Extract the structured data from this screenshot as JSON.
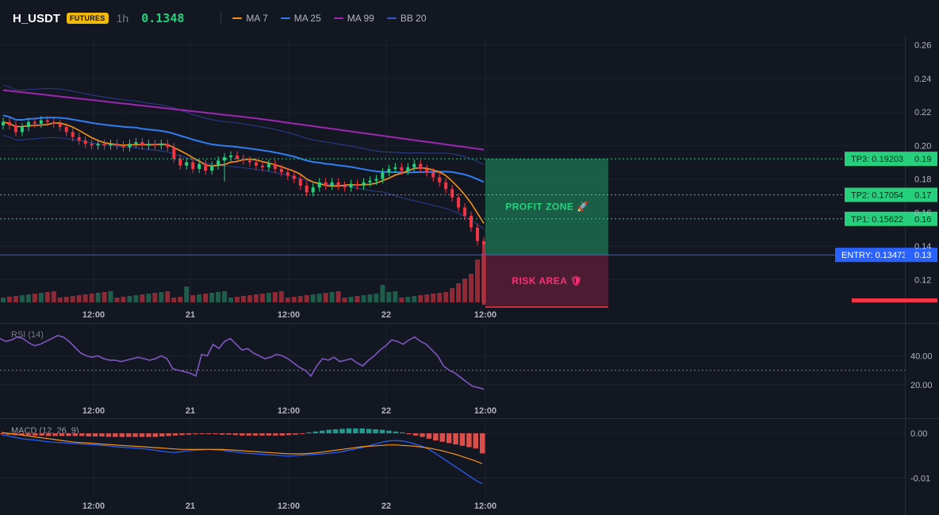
{
  "header": {
    "symbol": "H_USDT",
    "badge": "FUTURES",
    "timeframe": "1h",
    "last_price": "0.1348",
    "indicators": [
      {
        "label": "MA 7",
        "color": "#f7931a"
      },
      {
        "label": "MA 25",
        "color": "#2f7ff3"
      },
      {
        "label": "MA 99",
        "color": "#9c27b0"
      },
      {
        "label": "BB 20",
        "color": "#2a3f8f"
      }
    ]
  },
  "colors": {
    "up": "#26d07c",
    "down": "#f23645",
    "vol_up": "#1f5c4a",
    "vol_down": "#8e2a35",
    "entry": "#2962ff",
    "tp": "#26d07c",
    "profit_zone": "#1d6b4f",
    "risk_zone": "#7a2040"
  },
  "price_axis": {
    "min": 0.105,
    "max": 0.265,
    "ticks": [
      "0.26",
      "0.24",
      "0.22",
      "0.20",
      "0.18",
      "0.16",
      "0.14",
      "0.12"
    ]
  },
  "time_axis": [
    "12:00",
    "21",
    "12:00",
    "22",
    "12:00"
  ],
  "levels": {
    "tp3": {
      "label": "TP3: 0.19203",
      "value": 0.19203,
      "axis_label": "0.19"
    },
    "tp2": {
      "label": "TP2: 0.17054",
      "value": 0.17054,
      "axis_label": "0.17"
    },
    "tp1": {
      "label": "TP1: 0.15622",
      "value": 0.15622,
      "axis_label": "0.16"
    },
    "entry": {
      "label": "ENTRY: 0.13473",
      "value": 0.13473,
      "axis_label": "0.13"
    }
  },
  "zones": {
    "profit": {
      "label": "PROFIT ZONE 🚀",
      "top": 0.19203,
      "bottom": 0.13473
    },
    "risk": {
      "label": "RISK AREA 🛡",
      "top": 0.13473,
      "bottom": 0.105
    }
  },
  "rsi": {
    "title": "RSI (14)",
    "ticks": [
      "40.00",
      "20.00"
    ],
    "min": 10,
    "max": 60,
    "level": 30,
    "values": [
      52,
      50,
      51,
      53,
      52,
      49,
      47,
      48,
      50,
      52,
      54,
      53,
      50,
      46,
      42,
      40,
      39,
      40,
      38,
      37,
      37,
      36,
      37,
      38,
      39,
      38,
      37,
      38,
      40,
      38,
      31,
      30,
      29,
      28,
      26,
      41,
      40,
      48,
      45,
      50,
      52,
      48,
      44,
      45,
      42,
      40,
      38,
      39,
      41,
      40,
      38,
      35,
      32,
      30,
      26,
      33,
      38,
      37,
      39,
      36,
      37,
      38,
      35,
      33,
      37,
      40,
      44,
      47,
      51,
      50,
      48,
      51,
      53,
      50,
      48,
      44,
      40,
      33,
      30,
      28,
      25,
      22,
      19,
      18,
      17
    ]
  },
  "macd": {
    "title": "MACD (12, 26, 9)",
    "ticks": [
      "0.00",
      "-0.01"
    ],
    "min": -0.0135,
    "max": 0.0025,
    "macd": [
      -0.0003,
      -0.0006,
      -0.0009,
      -0.0012,
      -0.0014,
      -0.0015,
      -0.0017,
      -0.0019,
      -0.002,
      -0.0021,
      -0.0022,
      -0.0023,
      -0.0024,
      -0.0025,
      -0.0026,
      -0.0027,
      -0.0028,
      -0.003,
      -0.0031,
      -0.0032,
      -0.0033,
      -0.0034,
      -0.0036,
      -0.0038,
      -0.004,
      -0.0042,
      -0.0043,
      -0.0041,
      -0.0039,
      -0.0038,
      -0.0037,
      -0.0036,
      -0.0037,
      -0.0038,
      -0.004,
      -0.0042,
      -0.0044,
      -0.0045,
      -0.0046,
      -0.0047,
      -0.0048,
      -0.0049,
      -0.005,
      -0.0051,
      -0.005,
      -0.0049,
      -0.0048,
      -0.0047,
      -0.0046,
      -0.0045,
      -0.0043,
      -0.0041,
      -0.0038,
      -0.0035,
      -0.0032,
      -0.0028,
      -0.0024,
      -0.002,
      -0.0017,
      -0.0016,
      -0.0017,
      -0.002,
      -0.0024,
      -0.0029,
      -0.0036,
      -0.0045,
      -0.0055,
      -0.0065,
      -0.0075,
      -0.0085,
      -0.0095,
      -0.0105,
      -0.0113
    ],
    "signal": [
      0.0002,
      0.0,
      -0.0002,
      -0.0004,
      -0.0006,
      -0.0008,
      -0.001,
      -0.0012,
      -0.0014,
      -0.0016,
      -0.0018,
      -0.002,
      -0.0021,
      -0.0022,
      -0.0023,
      -0.0024,
      -0.0025,
      -0.0026,
      -0.0027,
      -0.0028,
      -0.0029,
      -0.003,
      -0.0031,
      -0.0032,
      -0.0033,
      -0.0034,
      -0.0035,
      -0.0036,
      -0.0036,
      -0.0036,
      -0.0036,
      -0.0036,
      -0.0036,
      -0.0036,
      -0.0037,
      -0.0038,
      -0.0039,
      -0.004,
      -0.0041,
      -0.0042,
      -0.0043,
      -0.0044,
      -0.0045,
      -0.0046,
      -0.0046,
      -0.0046,
      -0.0045,
      -0.0044,
      -0.0042,
      -0.004,
      -0.0038,
      -0.0036,
      -0.0034,
      -0.0032,
      -0.003,
      -0.0029,
      -0.0028,
      -0.0027,
      -0.0026,
      -0.0026,
      -0.0027,
      -0.0028,
      -0.0029,
      -0.0031,
      -0.0033,
      -0.0036,
      -0.0039,
      -0.0043,
      -0.0047,
      -0.0052,
      -0.0057,
      -0.0062,
      -0.0068
    ],
    "hist": [
      -0.0002,
      -0.0003,
      -0.0004,
      -0.0004,
      -0.0004,
      -0.0005,
      -0.0005,
      -0.0006,
      -0.0006,
      -0.0006,
      -0.0006,
      -0.0006,
      -0.0006,
      -0.0007,
      -0.0007,
      -0.0007,
      -0.0008,
      -0.0008,
      -0.0008,
      -0.0008,
      -0.0008,
      -0.0008,
      -0.0008,
      -0.0008,
      -0.0007,
      -0.0006,
      -0.0005,
      -0.0004,
      -0.0003,
      -0.0002,
      -0.0001,
      -0.0001,
      -0.0002,
      -0.0003,
      -0.0003,
      -0.0004,
      -0.0005,
      -0.0005,
      -0.0005,
      -0.0005,
      -0.0005,
      -0.0005,
      -0.0005,
      -0.0004,
      -0.0003,
      -0.0001,
      0.0002,
      0.0004,
      0.0006,
      0.0008,
      0.0009,
      0.001,
      0.0011,
      0.0011,
      0.0011,
      0.001,
      0.0009,
      0.0008,
      0.0006,
      0.0004,
      0.0002,
      -0.0002,
      -0.0005,
      -0.0008,
      -0.0012,
      -0.0016,
      -0.0019,
      -0.0022,
      -0.0025,
      -0.0028,
      -0.0031,
      -0.0034,
      -0.0045
    ]
  }
}
